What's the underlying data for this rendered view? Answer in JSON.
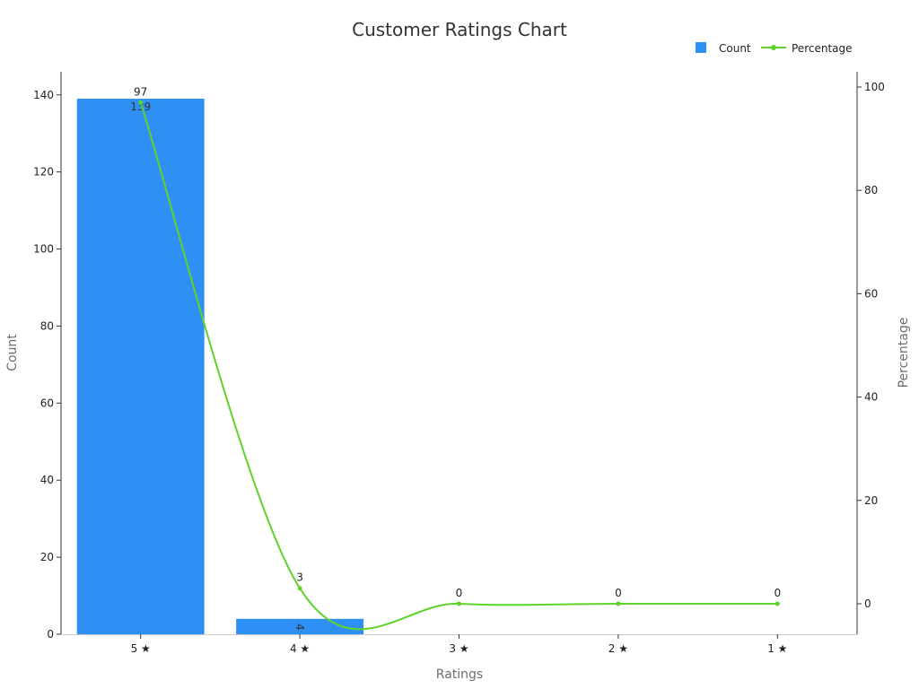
{
  "chart_data": {
    "type": "bar",
    "title": "Customer Ratings Chart",
    "xlabel": "Ratings",
    "ylabel": "Count",
    "y2label": "Percentage",
    "categories": [
      "5 ★",
      "4 ★",
      "3 ★",
      "2 ★",
      "1 ★"
    ],
    "ylim": [
      0,
      146
    ],
    "y2lim": [
      -6,
      103
    ],
    "yticks": [
      0,
      20,
      40,
      60,
      80,
      100,
      120,
      140
    ],
    "y2ticks": [
      0,
      20,
      40,
      60,
      80,
      100
    ],
    "series": [
      {
        "name": "Count",
        "type": "bar",
        "axis": "left",
        "color": "#2e90f5",
        "values": [
          139,
          4,
          0,
          0,
          0
        ],
        "labels": [
          "139",
          "4",
          "",
          "",
          ""
        ]
      },
      {
        "name": "Percentage",
        "type": "line",
        "axis": "right",
        "smooth": true,
        "color": "#5fd32a",
        "values": [
          97,
          3,
          0,
          0,
          0
        ],
        "labels": [
          "97",
          "3",
          "0",
          "0",
          "0"
        ]
      }
    ],
    "legend_position": "top-right",
    "grid": false
  }
}
